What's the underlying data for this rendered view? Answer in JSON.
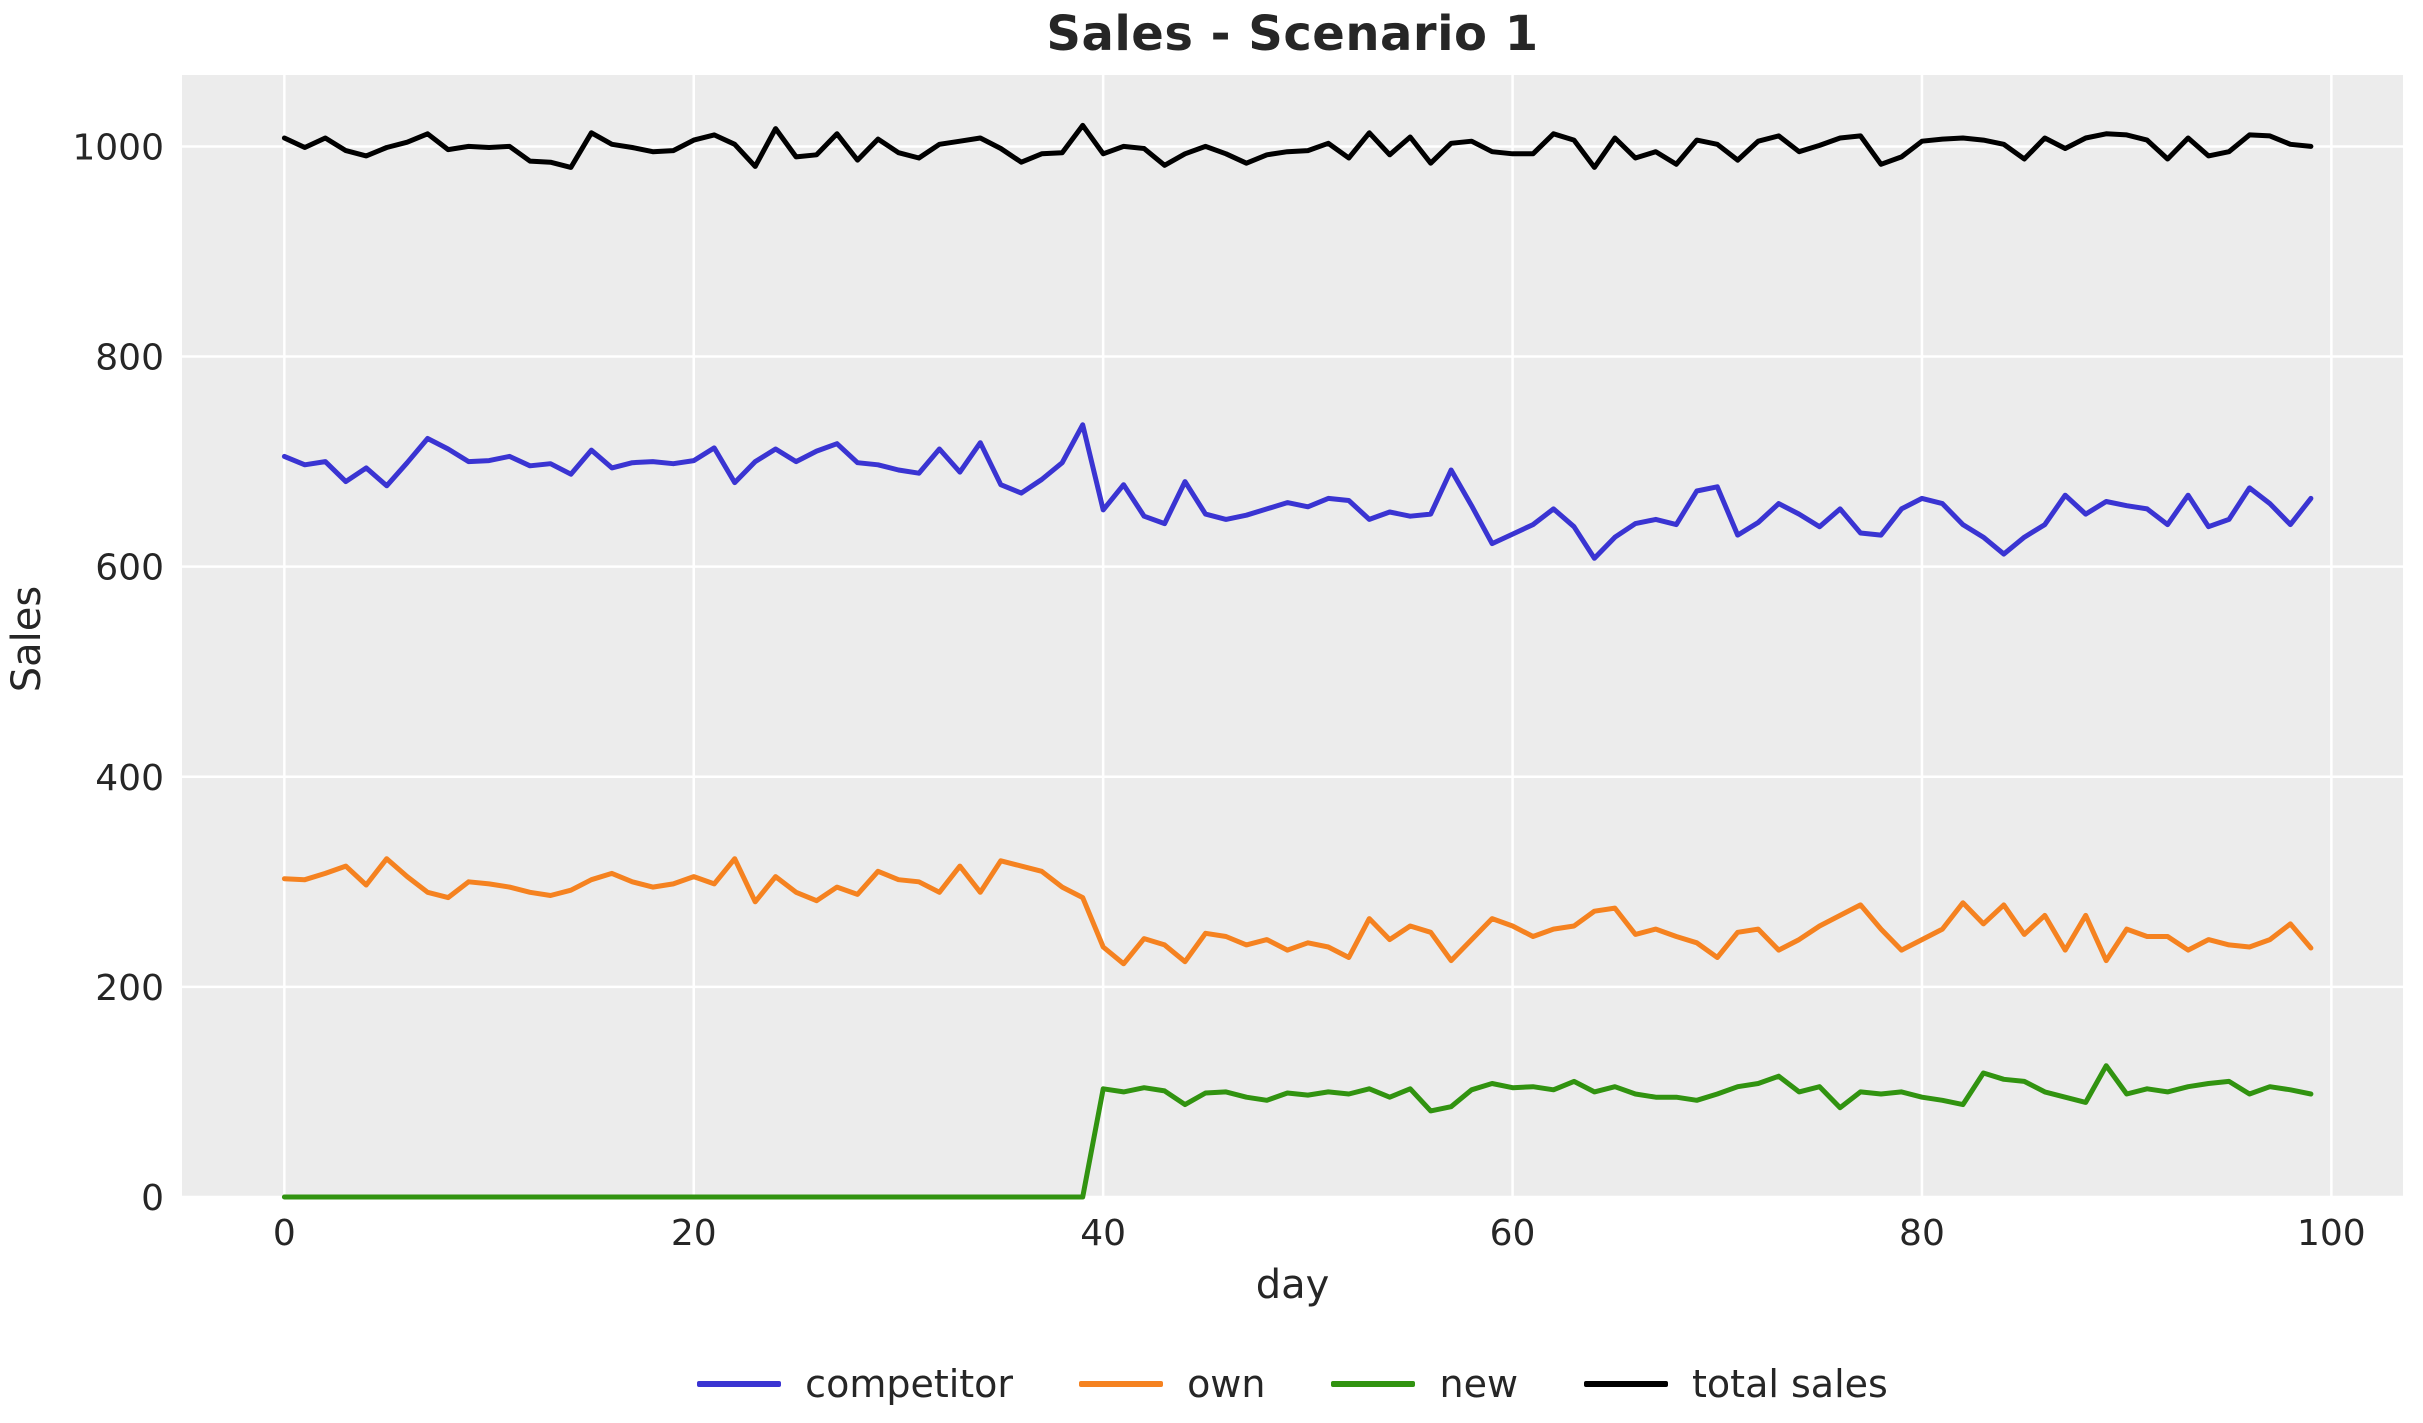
{
  "chart": {
    "title": "Sales - Scenario 1",
    "plot_bg_color": "#ececec",
    "grid_color": "#ffffff",
    "text_color": "#262626"
  },
  "legend": {
    "items": [
      {
        "label": "competitor"
      },
      {
        "label": "own"
      },
      {
        "label": "new"
      },
      {
        "label": "total sales"
      }
    ]
  },
  "chart_data": {
    "type": "line",
    "title": "Sales - Scenario 1",
    "xlabel": "day",
    "ylabel": "Sales",
    "xlim": [
      -5,
      103.5
    ],
    "ylim": [
      0,
      1068
    ],
    "xticks": [
      0,
      20,
      40,
      60,
      80,
      100
    ],
    "yticks": [
      0,
      200,
      400,
      600,
      800,
      1000
    ],
    "grid": true,
    "legend_position": "below-center",
    "x": [
      0,
      1,
      2,
      3,
      4,
      5,
      6,
      7,
      8,
      9,
      10,
      11,
      12,
      13,
      14,
      15,
      16,
      17,
      18,
      19,
      20,
      21,
      22,
      23,
      24,
      25,
      26,
      27,
      28,
      29,
      30,
      31,
      32,
      33,
      34,
      35,
      36,
      37,
      38,
      39,
      40,
      41,
      42,
      43,
      44,
      45,
      46,
      47,
      48,
      49,
      50,
      51,
      52,
      53,
      54,
      55,
      56,
      57,
      58,
      59,
      60,
      61,
      62,
      63,
      64,
      65,
      66,
      67,
      68,
      69,
      70,
      71,
      72,
      73,
      74,
      75,
      76,
      77,
      78,
      79,
      80,
      81,
      82,
      83,
      84,
      85,
      86,
      87,
      88,
      89,
      90,
      91,
      92,
      93,
      94,
      95,
      96,
      97,
      98,
      99
    ],
    "series": [
      {
        "name": "competitor",
        "color": "#3a34d2",
        "values": [
          705,
          697,
          700,
          681,
          694,
          677,
          699,
          722,
          712,
          700,
          701,
          705,
          696,
          698,
          688,
          711,
          694,
          699,
          700,
          698,
          701,
          713,
          680,
          700,
          712,
          700,
          710,
          717,
          699,
          697,
          692,
          689,
          712,
          690,
          718,
          678,
          670,
          683,
          699,
          735,
          654,
          678,
          648,
          641,
          681,
          650,
          645,
          649,
          655,
          661,
          657,
          665,
          663,
          645,
          652,
          648,
          650,
          692,
          658,
          622,
          631,
          640,
          655,
          638,
          608,
          628,
          641,
          645,
          640,
          672,
          676,
          630,
          642,
          660,
          650,
          638,
          655,
          632,
          630,
          655,
          665,
          660,
          640,
          628,
          612,
          628,
          640,
          668,
          650,
          662,
          658,
          655,
          640,
          668,
          638,
          645,
          675,
          660,
          640,
          665
        ]
      },
      {
        "name": "own",
        "color": "#f58220",
        "values": [
          303,
          302,
          308,
          315,
          297,
          322,
          305,
          290,
          285,
          300,
          298,
          295,
          290,
          287,
          292,
          302,
          308,
          300,
          295,
          298,
          305,
          298,
          322,
          281,
          305,
          290,
          282,
          295,
          288,
          310,
          302,
          300,
          290,
          315,
          290,
          320,
          315,
          310,
          295,
          285,
          238,
          222,
          246,
          240,
          224,
          251,
          248,
          240,
          245,
          235,
          242,
          238,
          228,
          265,
          245,
          258,
          252,
          225,
          245,
          265,
          258,
          248,
          255,
          258,
          272,
          275,
          250,
          255,
          248,
          242,
          228,
          252,
          255,
          235,
          245,
          258,
          268,
          278,
          255,
          235,
          245,
          255,
          280,
          260,
          278,
          250,
          268,
          235,
          268,
          225,
          255,
          248,
          248,
          235,
          245,
          240,
          238,
          245,
          260,
          237
        ]
      },
      {
        "name": "new",
        "color": "#319310",
        "values": [
          0,
          0,
          0,
          0,
          0,
          0,
          0,
          0,
          0,
          0,
          0,
          0,
          0,
          0,
          0,
          0,
          0,
          0,
          0,
          0,
          0,
          0,
          0,
          0,
          0,
          0,
          0,
          0,
          0,
          0,
          0,
          0,
          0,
          0,
          0,
          0,
          0,
          0,
          0,
          0,
          103,
          100,
          104,
          101,
          88,
          99,
          100,
          95,
          92,
          99,
          97,
          100,
          98,
          103,
          95,
          103,
          82,
          86,
          102,
          108,
          104,
          105,
          102,
          110,
          100,
          105,
          98,
          95,
          95,
          92,
          98,
          105,
          108,
          115,
          100,
          105,
          85,
          100,
          98,
          100,
          95,
          92,
          88,
          118,
          112,
          110,
          100,
          95,
          90,
          125,
          98,
          103,
          100,
          105,
          108,
          110,
          98,
          105,
          102,
          98
        ]
      },
      {
        "name": "total sales",
        "color": "#000000",
        "values": [
          1008,
          999,
          1008,
          996,
          991,
          999,
          1004,
          1012,
          997,
          1000,
          999,
          1000,
          986,
          985,
          980,
          1013,
          1002,
          999,
          995,
          996,
          1006,
          1011,
          1002,
          981,
          1017,
          990,
          992,
          1012,
          987,
          1007,
          994,
          989,
          1002,
          1005,
          1008,
          998,
          985,
          993,
          994,
          1020,
          993,
          1000,
          998,
          982,
          993,
          1000,
          993,
          984,
          992,
          995,
          996,
          1003,
          989,
          1013,
          992,
          1009,
          984,
          1003,
          1005,
          995,
          993,
          993,
          1012,
          1006,
          980,
          1008,
          989,
          995,
          983,
          1006,
          1002,
          987,
          1005,
          1010,
          995,
          1001,
          1008,
          1010,
          983,
          990,
          1005,
          1007,
          1008,
          1006,
          1002,
          988,
          1008,
          998,
          1008,
          1012,
          1011,
          1006,
          988,
          1008,
          991,
          995,
          1011,
          1010,
          1002,
          1000
        ]
      }
    ]
  }
}
